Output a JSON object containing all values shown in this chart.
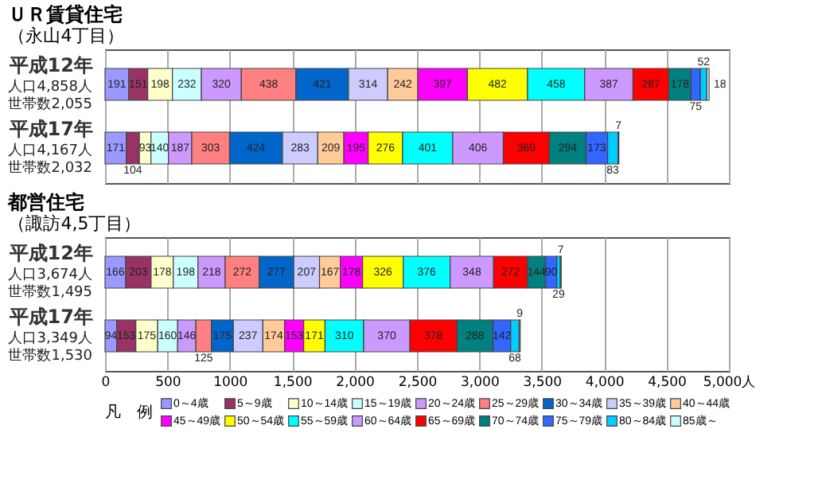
{
  "chart_data": [
    {
      "type": "bar",
      "orientation": "horizontal",
      "stacked": true,
      "title": "ＵＲ賃貸住宅",
      "subtitle": "（永山4丁目）",
      "categories": [
        "平成12年",
        "平成17年"
      ],
      "series": [
        {
          "name": "0～4歳",
          "color": "#9999ff",
          "values": [
            191,
            171
          ]
        },
        {
          "name": "5～9歳",
          "color": "#993366",
          "values": [
            151,
            104
          ]
        },
        {
          "name": "10～14歳",
          "color": "#ffffcc",
          "values": [
            198,
            93
          ]
        },
        {
          "name": "15～19歳",
          "color": "#ccffff",
          "values": [
            232,
            140
          ]
        },
        {
          "name": "20～24歳",
          "color": "#cc99ff",
          "values": [
            320,
            187
          ]
        },
        {
          "name": "25～29歳",
          "color": "#ff8080",
          "values": [
            438,
            303
          ]
        },
        {
          "name": "30～34歳",
          "color": "#0066cc",
          "values": [
            421,
            424
          ]
        },
        {
          "name": "35～39歳",
          "color": "#ccccff",
          "values": [
            314,
            283
          ]
        },
        {
          "name": "40～44歳",
          "color": "#ffcc99",
          "values": [
            242,
            209
          ]
        },
        {
          "name": "45～49歳",
          "color": "#ff00ff",
          "values": [
            397,
            195
          ]
        },
        {
          "name": "50～54歳",
          "color": "#ffff00",
          "values": [
            482,
            276
          ]
        },
        {
          "name": "55～59歳",
          "color": "#00ffff",
          "values": [
            458,
            401
          ]
        },
        {
          "name": "60～64歳",
          "color": "#cc99ff",
          "values": [
            387,
            406
          ]
        },
        {
          "name": "65～69歳",
          "color": "#ff0000",
          "values": [
            287,
            369
          ]
        },
        {
          "name": "70～74歳",
          "color": "#008080",
          "values": [
            178,
            294
          ]
        },
        {
          "name": "75～79歳",
          "color": "#3366ff",
          "values": [
            75,
            173
          ]
        },
        {
          "name": "80～84歳",
          "color": "#00ccff",
          "values": [
            52,
            83
          ]
        },
        {
          "name": "85歳～",
          "color": "#ccffff",
          "values": [
            18,
            7
          ]
        }
      ],
      "xlim": [
        0,
        5000
      ],
      "xticks": [
        0,
        500,
        1000,
        1500,
        2000,
        2500,
        3000,
        3500,
        4000,
        4500,
        5000
      ],
      "grid": "x",
      "data_labels": true,
      "tick_labels": "y",
      "legend": "bottom",
      "annotations": [
        "人口4,858人",
        "世帯数2,055",
        "人口4,167人",
        "世帯数2,032"
      ]
    },
    {
      "type": "bar",
      "orientation": "horizontal",
      "stacked": true,
      "title": "都営住宅",
      "subtitle": "（諏訪4,5丁目）",
      "categories": [
        "平成12年",
        "平成17年"
      ],
      "series": [
        {
          "name": "0～4歳",
          "color": "#9999ff",
          "values": [
            166,
            94
          ]
        },
        {
          "name": "5～9歳",
          "color": "#993366",
          "values": [
            203,
            153
          ]
        },
        {
          "name": "10～14歳",
          "color": "#ffffcc",
          "values": [
            178,
            175
          ]
        },
        {
          "name": "15～19歳",
          "color": "#ccffff",
          "values": [
            198,
            160
          ]
        },
        {
          "name": "20～24歳",
          "color": "#cc99ff",
          "values": [
            218,
            146
          ]
        },
        {
          "name": "25～29歳",
          "color": "#ff8080",
          "values": [
            272,
            125
          ]
        },
        {
          "name": "30～34歳",
          "color": "#0066cc",
          "values": [
            277,
            175
          ]
        },
        {
          "name": "35～39歳",
          "color": "#ccccff",
          "values": [
            207,
            237
          ]
        },
        {
          "name": "40～44歳",
          "color": "#ffcc99",
          "values": [
            167,
            174
          ]
        },
        {
          "name": "45～49歳",
          "color": "#ff00ff",
          "values": [
            178,
            153
          ]
        },
        {
          "name": "50～54歳",
          "color": "#ffff00",
          "values": [
            326,
            171
          ]
        },
        {
          "name": "55～59歳",
          "color": "#00ffff",
          "values": [
            376,
            310
          ]
        },
        {
          "name": "60～64歳",
          "color": "#cc99ff",
          "values": [
            348,
            370
          ]
        },
        {
          "name": "65～69歳",
          "color": "#ff0000",
          "values": [
            272,
            378
          ]
        },
        {
          "name": "70～74歳",
          "color": "#008080",
          "values": [
            144,
            288
          ]
        },
        {
          "name": "75～79歳",
          "color": "#3366ff",
          "values": [
            90,
            142
          ]
        },
        {
          "name": "80～84歳",
          "color": "#00ccff",
          "values": [
            29,
            68
          ]
        },
        {
          "name": "85歳～",
          "color": "#ccffff",
          "values": [
            7,
            9
          ]
        }
      ],
      "xlim": [
        0,
        5000
      ],
      "xticks": [
        0,
        500,
        1000,
        {
          "value": 1500,
          "label": "1,500"
        },
        {
          "value": 2000,
          "label": "2,000"
        },
        {
          "value": 2500,
          "label": "2,500"
        },
        {
          "value": 3000,
          "label": "3,000"
        },
        {
          "value": 3500,
          "label": "3,500"
        },
        {
          "value": 4000,
          "label": "4,000"
        },
        {
          "value": 4500,
          "label": "4,500"
        },
        {
          "value": 5000,
          "label": "5,000人"
        }
      ],
      "grid": "x",
      "data_labels": true,
      "legend": "bottom",
      "legend_title": "凡　例",
      "annotations": [
        "人口3,674人",
        "世帯数1,495",
        "人口3,349人",
        "世帯数1,530"
      ]
    }
  ]
}
